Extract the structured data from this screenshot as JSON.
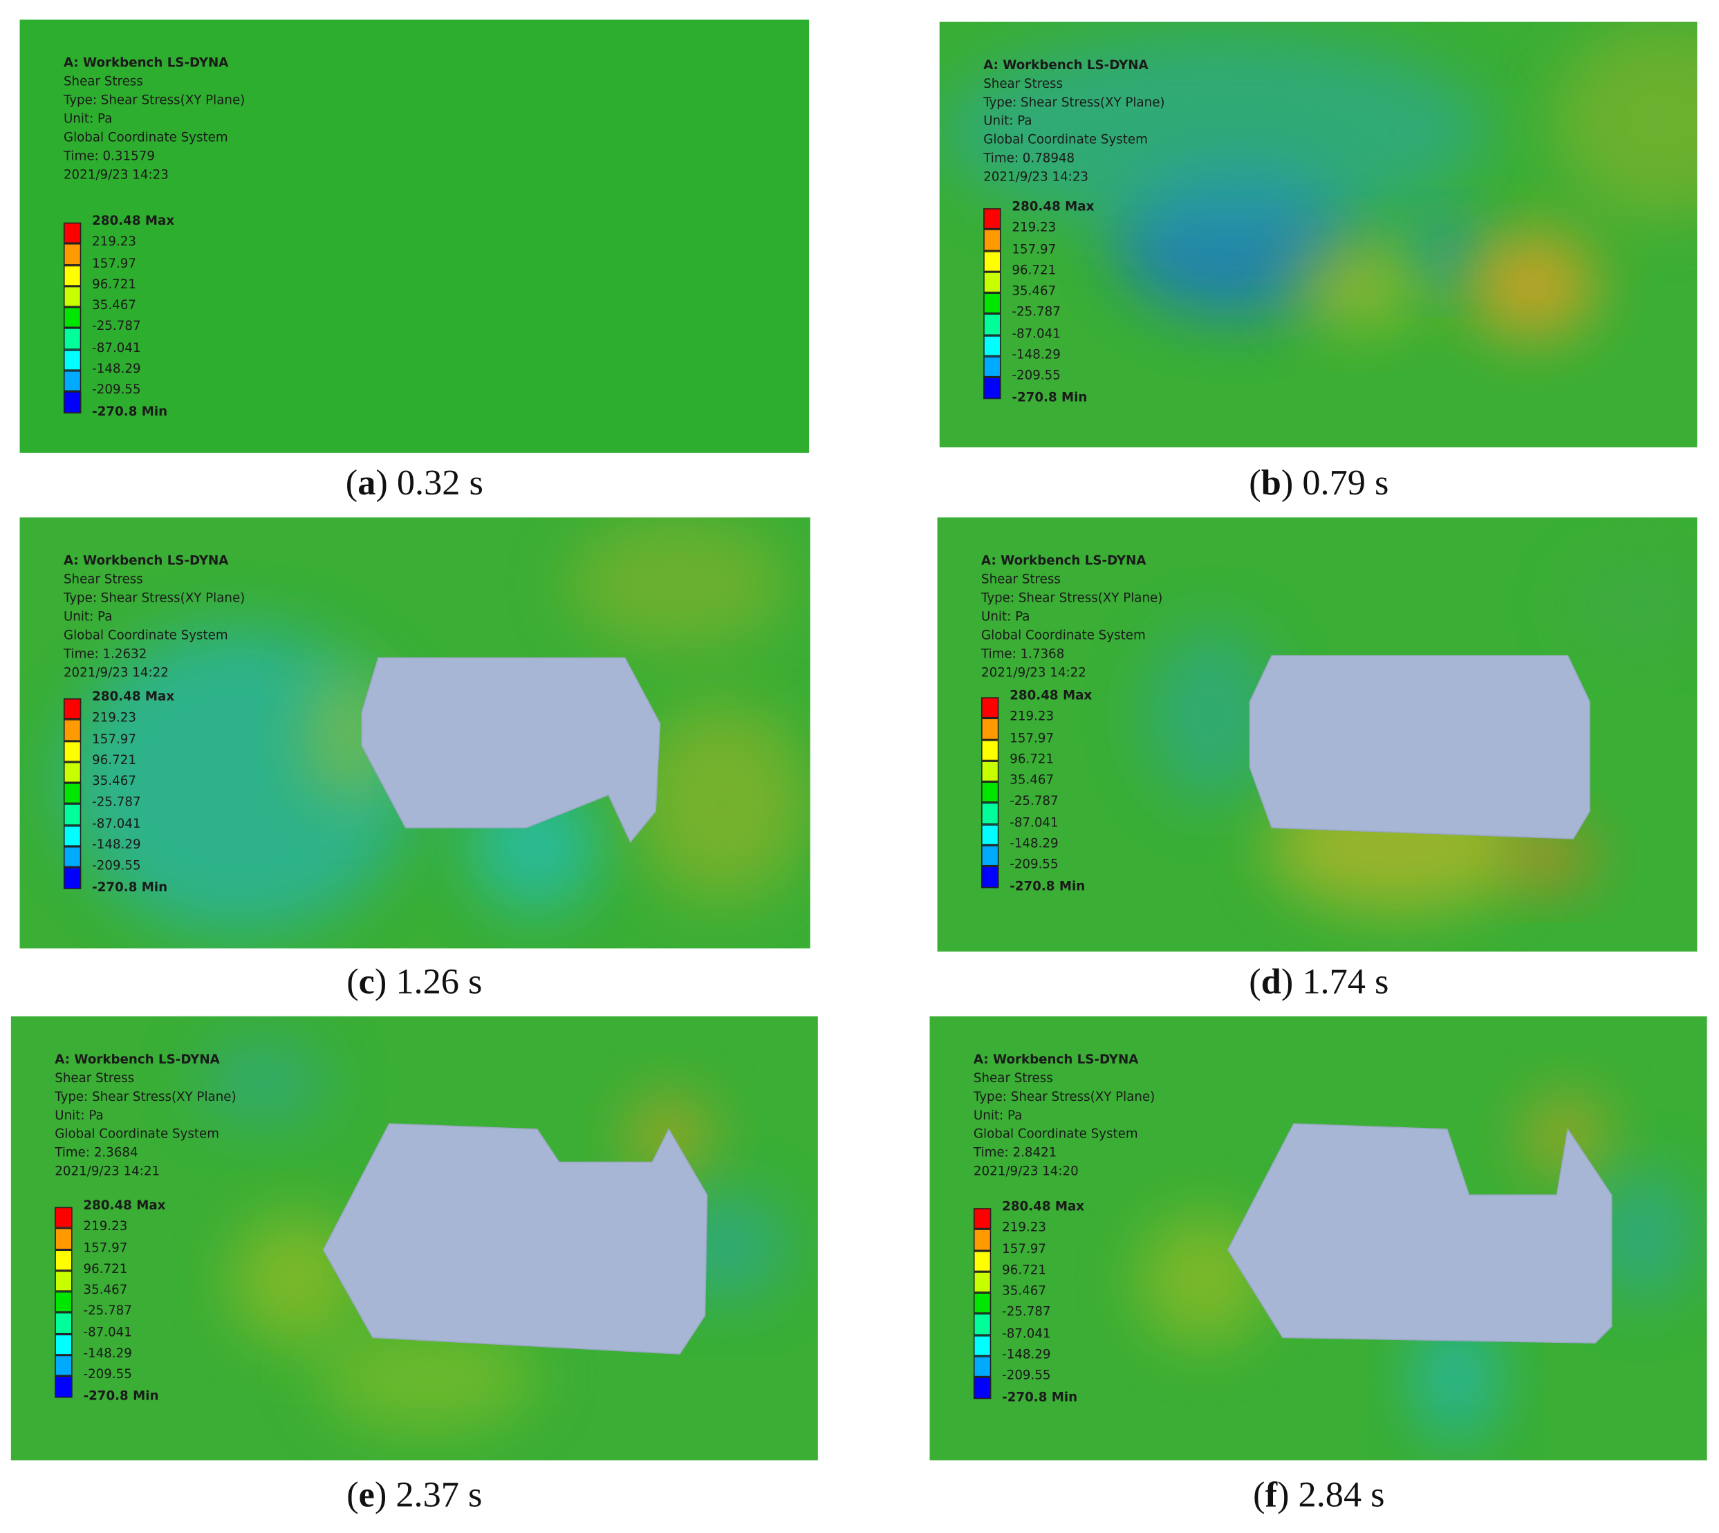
{
  "panels": [
    {
      "caption": {
        "open": "(",
        "letter": "a",
        "text": ") 0.32 s"
      },
      "info": [
        "A: Workbench LS-DYNA",
        "Shear Stress",
        "Type: Shear Stress(XY Plane)",
        "Unit: Pa",
        "Global Coordinate System",
        "Time: 0.31579",
        "2021/9/23 14:23"
      ],
      "legend": [
        "280.48 Max",
        "219.23",
        "157.97",
        "96.721",
        "35.467",
        "-25.787",
        "-87.041",
        "-148.29",
        "-209.55",
        "-270.8 Min"
      ]
    },
    {
      "caption": {
        "open": "(",
        "letter": "b",
        "text": ") 0.79 s"
      },
      "info": [
        "A: Workbench LS-DYNA",
        "Shear Stress",
        "Type: Shear Stress(XY Plane)",
        "Unit: Pa",
        "Global Coordinate System",
        "Time: 0.78948",
        "2021/9/23 14:23"
      ],
      "legend": [
        "280.48 Max",
        "219.23",
        "157.97",
        "96.721",
        "35.467",
        "-25.787",
        "-87.041",
        "-148.29",
        "-209.55",
        "-270.8 Min"
      ]
    },
    {
      "caption": {
        "open": "(",
        "letter": "c",
        "text": ") 1.26 s"
      },
      "info": [
        "A: Workbench LS-DYNA",
        "Shear Stress",
        "Type: Shear Stress(XY Plane)",
        "Unit: Pa",
        "Global Coordinate System",
        "Time: 1.2632",
        "2021/9/23 14:22"
      ],
      "legend": [
        "280.48 Max",
        "219.23",
        "157.97",
        "96.721",
        "35.467",
        "-25.787",
        "-87.041",
        "-148.29",
        "-209.55",
        "-270.8 Min"
      ]
    },
    {
      "caption": {
        "open": "(",
        "letter": "d",
        "text": ") 1.74 s"
      },
      "info": [
        "A: Workbench LS-DYNA",
        "Shear Stress",
        "Type: Shear Stress(XY Plane)",
        "Unit: Pa",
        "Global Coordinate System",
        "Time: 1.7368",
        "2021/9/23 14:22"
      ],
      "legend": [
        "280.48 Max",
        "219.23",
        "157.97",
        "96.721",
        "35.467",
        "-25.787",
        "-87.041",
        "-148.29",
        "-209.55",
        "-270.8 Min"
      ]
    },
    {
      "caption": {
        "open": "(",
        "letter": "e",
        "text": ") 2.37 s"
      },
      "info": [
        "A: Workbench LS-DYNA",
        "Shear Stress",
        "Type: Shear Stress(XY Plane)",
        "Unit: Pa",
        "Global Coordinate System",
        "Time: 2.3684",
        "2021/9/23 14:21"
      ],
      "legend": [
        "280.48 Max",
        "219.23",
        "157.97",
        "96.721",
        "35.467",
        "-25.787",
        "-87.041",
        "-148.29",
        "-209.55",
        "-270.8 Min"
      ]
    },
    {
      "caption": {
        "open": "(",
        "letter": "f",
        "text": ") 2.84 s"
      },
      "info": [
        "A: Workbench LS-DYNA",
        "Shear Stress",
        "Type: Shear Stress(XY Plane)",
        "Unit: Pa",
        "Global Coordinate System",
        "Time: 2.8421",
        "2021/9/23 14:20"
      ],
      "legend": [
        "280.48 Max",
        "219.23",
        "157.97",
        "96.721",
        "35.467",
        "-25.787",
        "-87.041",
        "-148.29",
        "-209.55",
        "-270.8 Min"
      ]
    }
  ]
}
